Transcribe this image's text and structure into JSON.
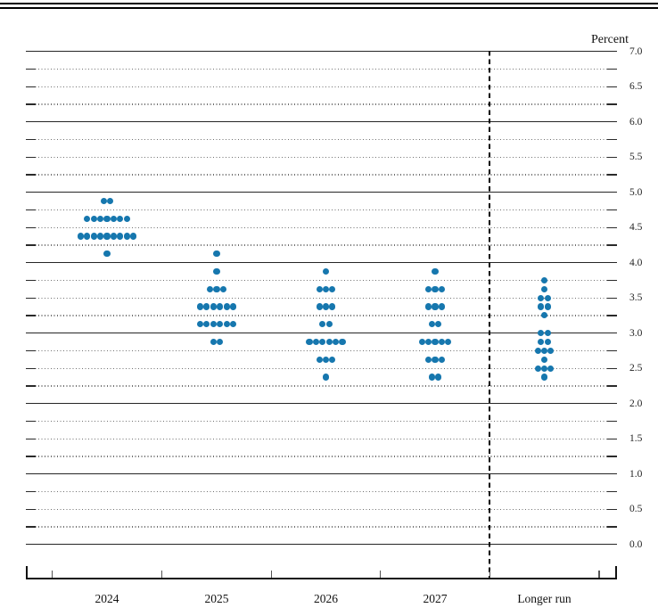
{
  "chart_data": {
    "type": "scatter",
    "subtype": "fomc-dot-plot",
    "title": "",
    "ylabel": "Percent",
    "xlabel": "",
    "ylim": [
      0.0,
      7.0
    ],
    "y_gridline_step": 0.25,
    "y_label_step": 0.5,
    "y_tick_labels": [
      "7.0",
      "6.5",
      "6.0",
      "5.5",
      "5.0",
      "4.5",
      "4.0",
      "3.5",
      "3.0",
      "2.5",
      "2.0",
      "1.5",
      "1.0",
      "0.5",
      "0.0"
    ],
    "grid": "solid-at-integers-dotted-at-quarters",
    "legend": "none",
    "categories": [
      "2024",
      "2025",
      "2026",
      "2027",
      "Longer run"
    ],
    "separator_before_category": "Longer run",
    "series": [
      {
        "category": "2024",
        "dots": [
          {
            "rate": 4.875,
            "count": 2
          },
          {
            "rate": 4.625,
            "count": 7
          },
          {
            "rate": 4.375,
            "count": 9
          },
          {
            "rate": 4.125,
            "count": 1
          }
        ]
      },
      {
        "category": "2025",
        "dots": [
          {
            "rate": 4.125,
            "count": 1
          },
          {
            "rate": 3.875,
            "count": 1
          },
          {
            "rate": 3.625,
            "count": 3
          },
          {
            "rate": 3.375,
            "count": 6
          },
          {
            "rate": 3.125,
            "count": 6
          },
          {
            "rate": 2.875,
            "count": 2
          }
        ]
      },
      {
        "category": "2026",
        "dots": [
          {
            "rate": 3.875,
            "count": 1
          },
          {
            "rate": 3.625,
            "count": 3
          },
          {
            "rate": 3.375,
            "count": 3
          },
          {
            "rate": 3.125,
            "count": 2
          },
          {
            "rate": 2.875,
            "count": 6
          },
          {
            "rate": 2.625,
            "count": 3
          },
          {
            "rate": 2.375,
            "count": 1
          }
        ]
      },
      {
        "category": "2027",
        "dots": [
          {
            "rate": 3.875,
            "count": 1
          },
          {
            "rate": 3.625,
            "count": 3
          },
          {
            "rate": 3.375,
            "count": 3
          },
          {
            "rate": 3.125,
            "count": 2
          },
          {
            "rate": 2.875,
            "count": 5
          },
          {
            "rate": 2.625,
            "count": 3
          },
          {
            "rate": 2.375,
            "count": 2
          }
        ]
      },
      {
        "category": "Longer run",
        "dots": [
          {
            "rate": 3.75,
            "count": 1
          },
          {
            "rate": 3.625,
            "count": 1
          },
          {
            "rate": 3.5,
            "count": 2
          },
          {
            "rate": 3.375,
            "count": 2
          },
          {
            "rate": 3.25,
            "count": 1
          },
          {
            "rate": 3.0,
            "count": 2
          },
          {
            "rate": 2.875,
            "count": 2
          },
          {
            "rate": 2.75,
            "count": 3
          },
          {
            "rate": 2.625,
            "count": 1
          },
          {
            "rate": 2.5,
            "count": 3
          },
          {
            "rate": 2.375,
            "count": 1
          }
        ]
      }
    ]
  },
  "colors": {
    "dot": "#1677ae",
    "solid_gridline": "#262626",
    "dotted_gridline": "#6f6f6f",
    "axis": "#111111"
  }
}
